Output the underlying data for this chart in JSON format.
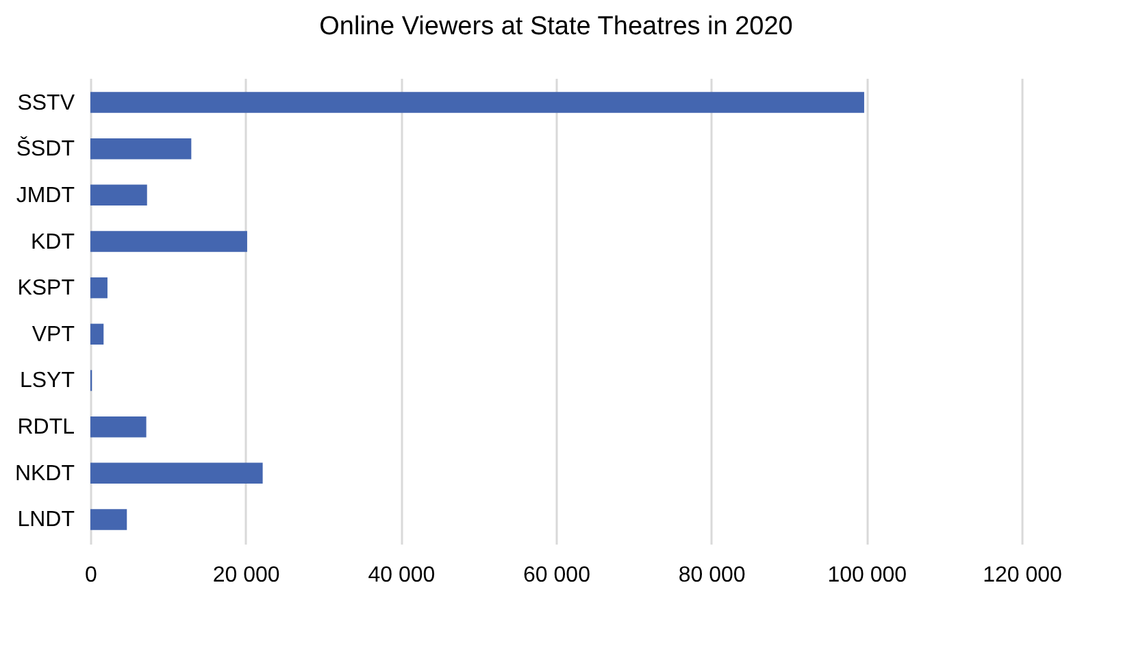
{
  "chart_data": {
    "type": "bar",
    "orientation": "horizontal",
    "title": "Online Viewers at State Theatres in 2020",
    "categories": [
      "SSTV",
      "ŠSDT",
      "JMDT",
      "KDT",
      "KSPT",
      "VPT",
      "LSYT",
      "RDTL",
      "NKDT",
      "LNDT"
    ],
    "values": [
      99700,
      13000,
      7300,
      20200,
      2200,
      1700,
      200,
      7200,
      22200,
      4700
    ],
    "color": "#4466b0",
    "xlim": [
      0,
      120000
    ],
    "xticks": [
      0,
      {
        "value": 20000,
        "label": "20 000"
      },
      {
        "value": 40000,
        "label": "40 000"
      },
      {
        "value": 60000,
        "label": "60 000"
      },
      {
        "value": 80000,
        "label": "80 000"
      },
      {
        "value": 100000,
        "label": "100 000"
      },
      {
        "value": 120000,
        "label": "120 000"
      }
    ],
    "grid": true
  }
}
